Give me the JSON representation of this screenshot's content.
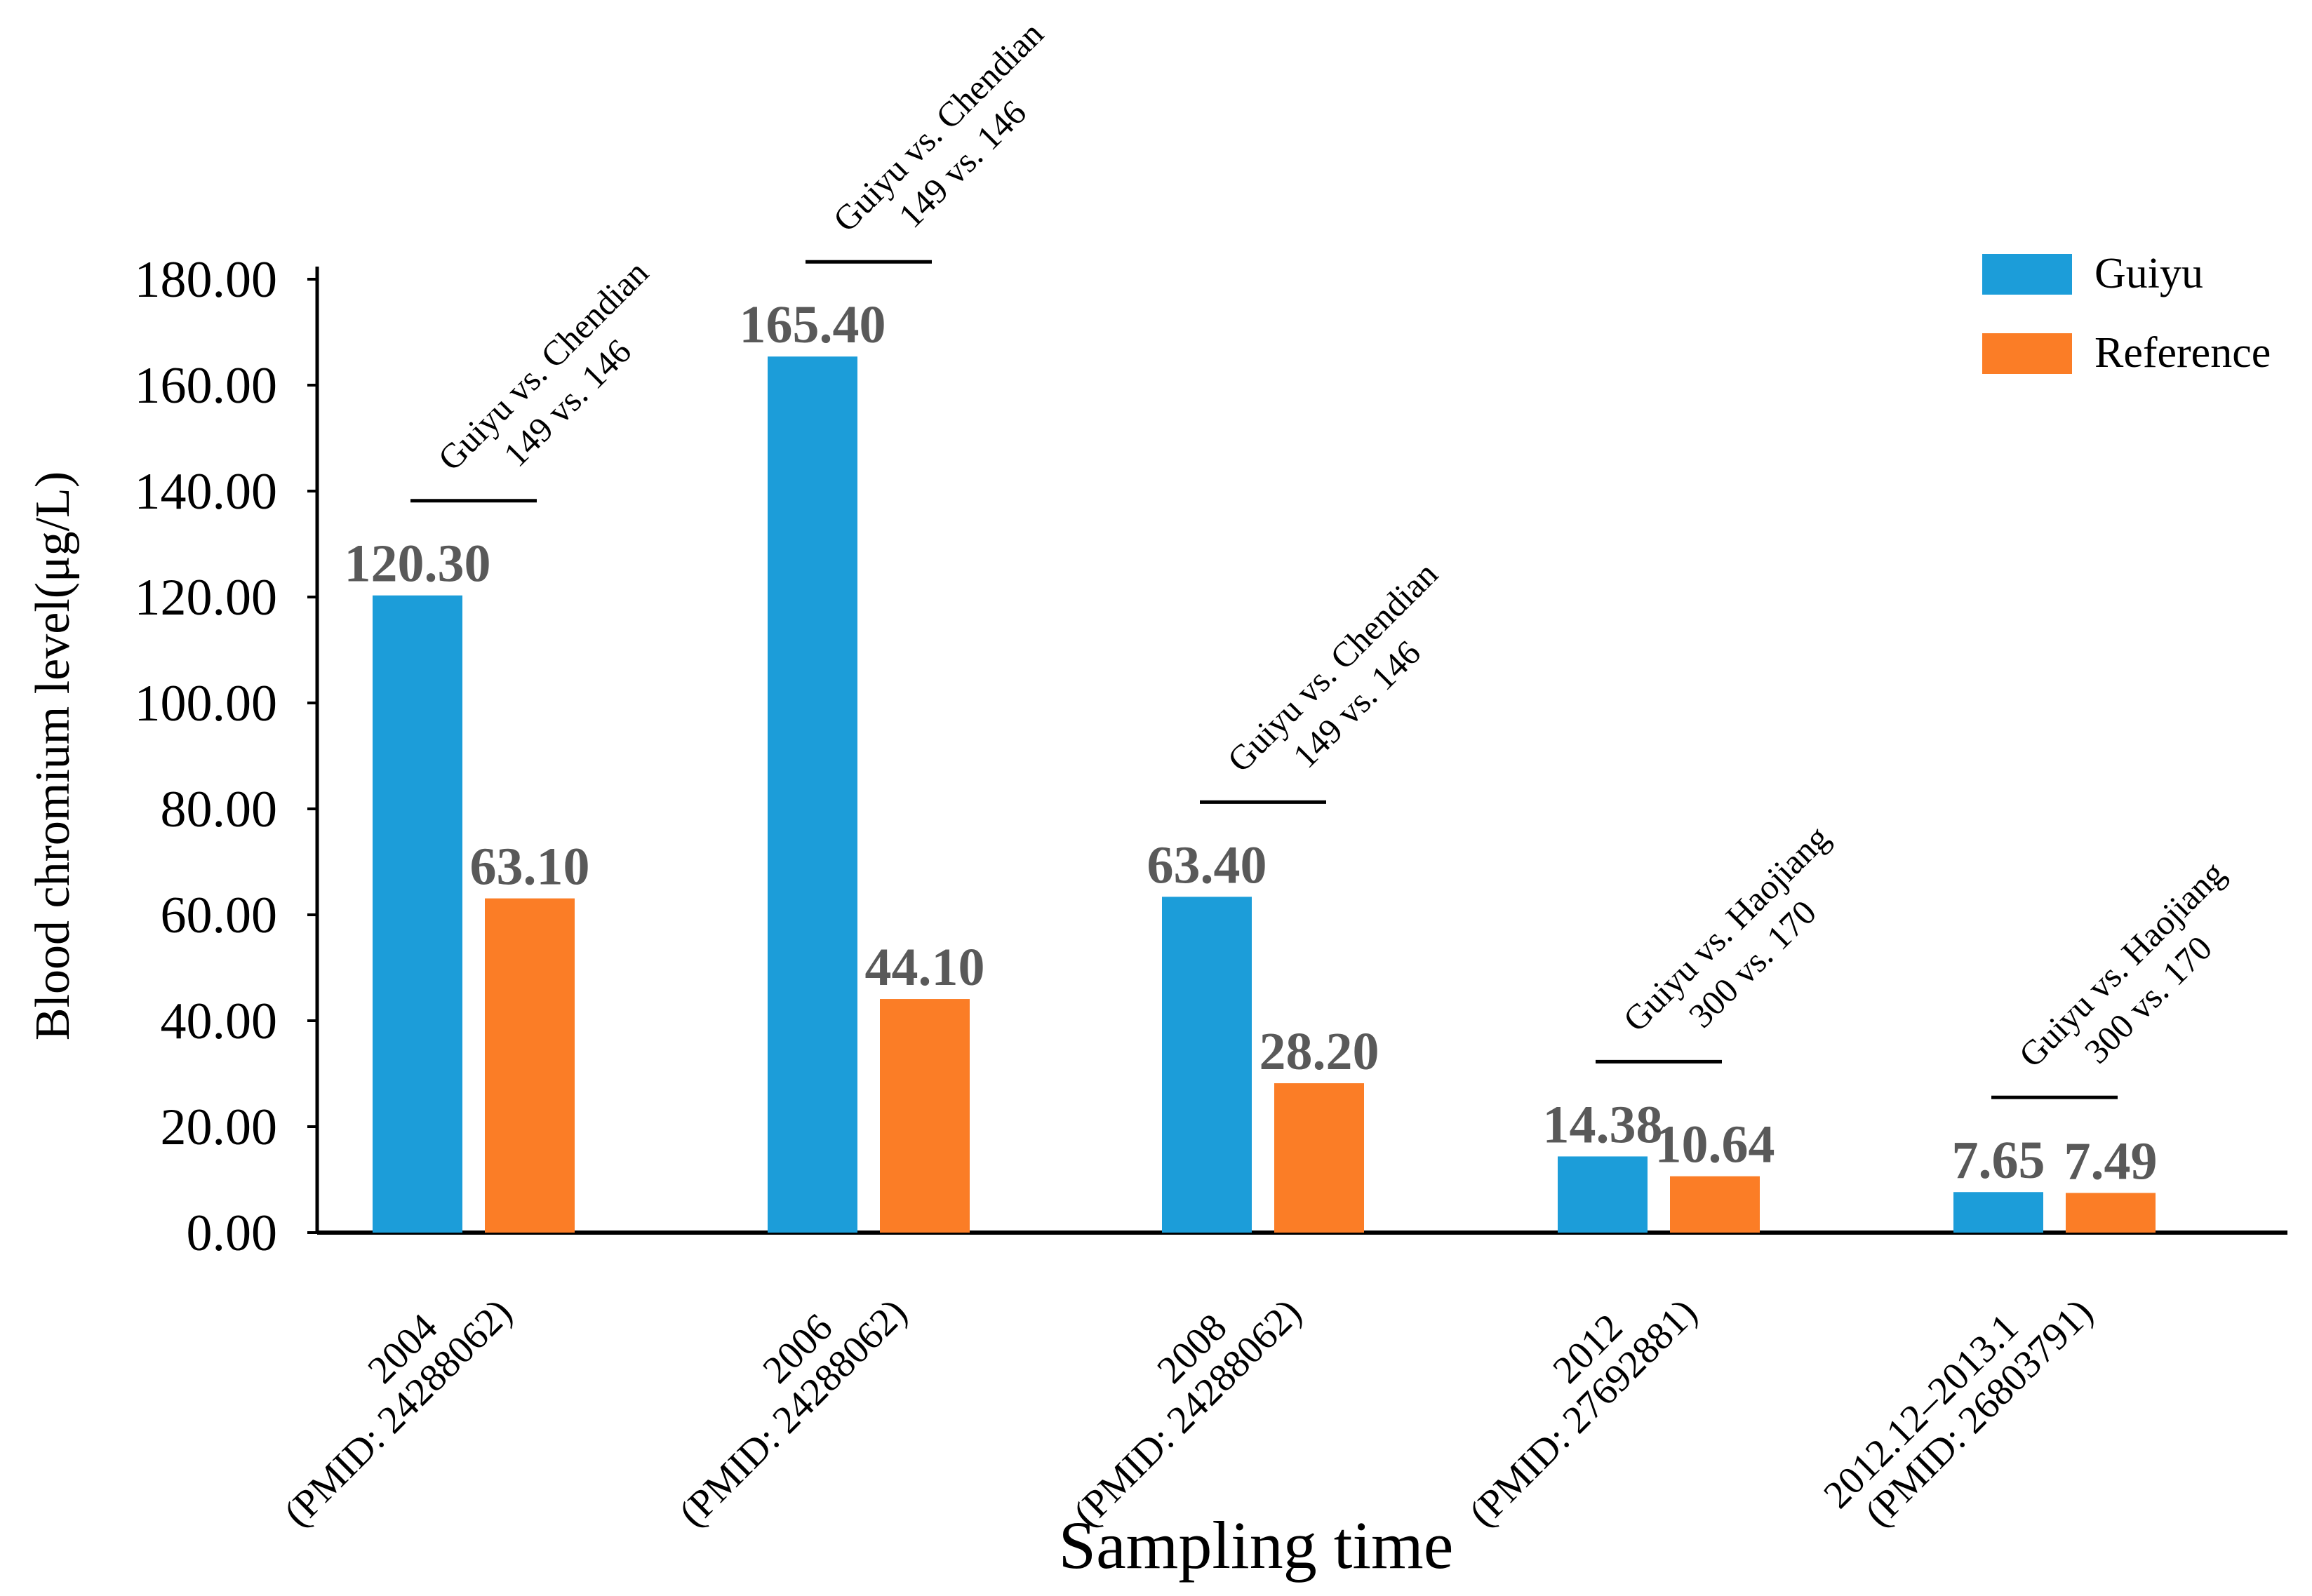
{
  "chart_data": {
    "type": "bar",
    "title": "",
    "xlabel": "Sampling time",
    "ylabel": "Blood chromium level(μg/L)",
    "ylim": [
      0,
      180
    ],
    "yticks": [
      0,
      20,
      40,
      60,
      80,
      100,
      120,
      140,
      160,
      180
    ],
    "ytick_labels": [
      "0.00",
      "20.00",
      "40.00",
      "60.00",
      "80.00",
      "100.00",
      "120.00",
      "140.00",
      "160.00",
      "180.00"
    ],
    "categories": [
      [
        "2004",
        "(PMID: 24288062)"
      ],
      [
        "2006",
        "(PMID: 24288062)"
      ],
      [
        "2008",
        "(PMID: 24288062)"
      ],
      [
        "2012",
        "(PMID: 27692881)"
      ],
      [
        "2012.12–2013.1",
        "(PMID: 26803791)"
      ]
    ],
    "series": [
      {
        "name": "Guiyu",
        "color": "#1c9dd9",
        "values": [
          120.3,
          165.4,
          63.4,
          14.38,
          7.65
        ],
        "labels": [
          "120.30",
          "165.40",
          "63.40",
          "14.38",
          "7.65"
        ]
      },
      {
        "name": "Reference",
        "color": "#fb7d26",
        "values": [
          63.1,
          44.1,
          28.2,
          10.64,
          7.49
        ],
        "labels": [
          "63.10",
          "44.10",
          "28.20",
          "10.64",
          "7.49"
        ]
      }
    ],
    "comparisons": [
      {
        "line1": "Guiyu vs. Chendian",
        "line2": "149 vs. 146"
      },
      {
        "line1": "Guiyu vs. Chendian",
        "line2": "149 vs. 146"
      },
      {
        "line1": "Guiyu vs. Chendian",
        "line2": "149 vs. 146"
      },
      {
        "line1": "Guiyu vs. Haojiang",
        "line2": "300 vs. 170"
      },
      {
        "line1": "Guiyu vs. Haojiang",
        "line2": "300 vs. 170"
      }
    ],
    "legend_position": "top-right",
    "grid": false,
    "data_label_color": "#595959",
    "axis_color": "#000000"
  }
}
